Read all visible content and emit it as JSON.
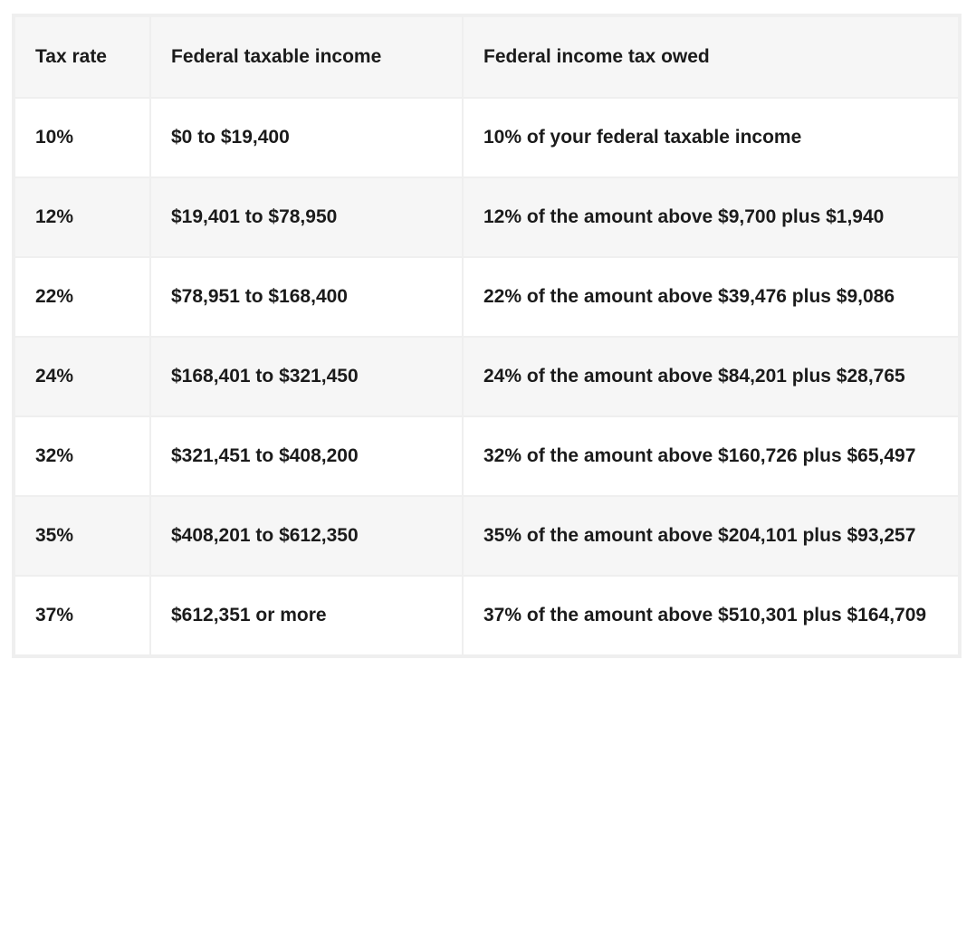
{
  "colors": {
    "page_bg": "#ffffff",
    "header_row_bg": "#f6f6f6",
    "alt_row_bg": "#f6f6f6",
    "row_bg": "#ffffff",
    "grid_line": "#efefef",
    "text": "#1b1b1b"
  },
  "chart_data": {
    "type": "table",
    "columns": [
      "Tax rate",
      "Federal taxable income",
      "Federal income tax owed"
    ],
    "rows": [
      [
        "10%",
        "$0 to $19,400",
        "10% of your federal taxable income"
      ],
      [
        "12%",
        "$19,401 to $78,950",
        "12% of the amount above $9,700 plus $1,940"
      ],
      [
        "22%",
        "$78,951 to $168,400",
        "22% of the amount above $39,476 plus $9,086"
      ],
      [
        "24%",
        "$168,401 to $321,450",
        "24% of the amount above $84,201 plus $28,765"
      ],
      [
        "32%",
        "$321,451 to $408,200",
        "32% of the amount above $160,726 plus $65,497"
      ],
      [
        "35%",
        "$408,201 to $612,350",
        "35% of the amount above $204,101 plus $93,257"
      ],
      [
        "37%",
        "$612,351 or more",
        "37% of the amount above $510,301 plus $164,709"
      ]
    ],
    "layout": {
      "striped": true,
      "stripe_pattern": "header gray, body rows alternate white/gray starting white",
      "grid": true
    }
  }
}
